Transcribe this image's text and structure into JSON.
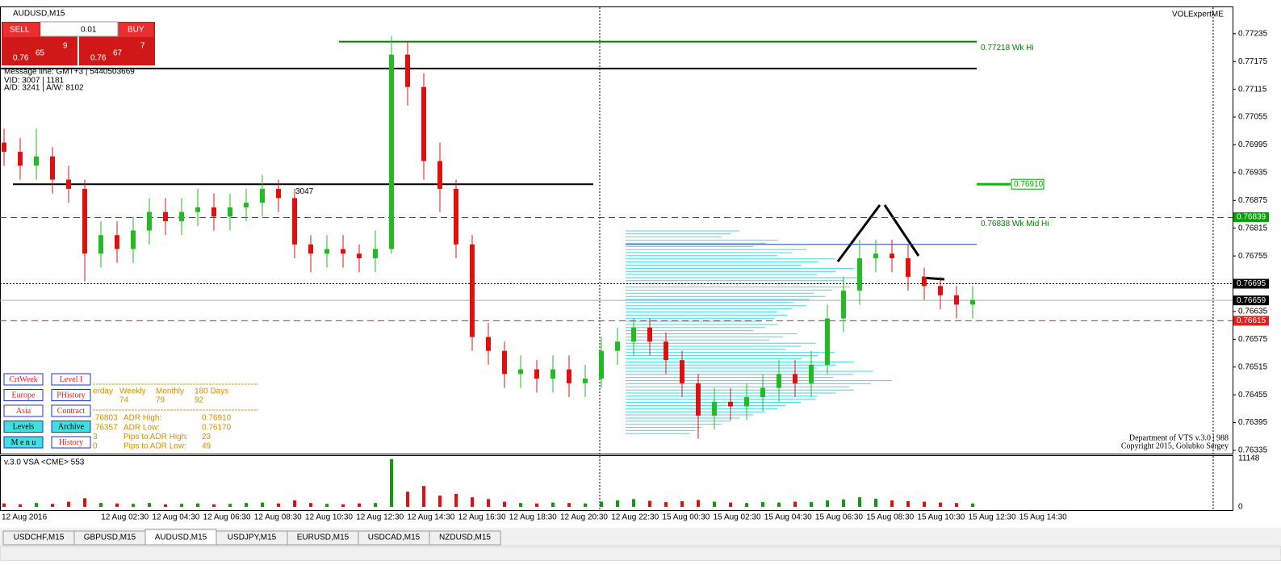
{
  "chart": {
    "symbol": "AUDUSD,M15",
    "quote": {
      "sell": "SELL",
      "buy": "BUY",
      "lot": "0.01",
      "bid_pre": "0.76",
      "bid_big": "65",
      "bid_small": "9",
      "ask_pre": "0.76",
      "ask_big": "67",
      "ask_small": "7"
    },
    "info": [
      "Message line: GMT+3 | 5440503669",
      "VID: 3007 | 1181",
      "A/D: 3241 | A/W: 8102"
    ],
    "expert": "VOLExpertME",
    "ylim": [
      0.76328,
      0.77294
    ],
    "yticks": [
      0.77235,
      0.77175,
      0.77115,
      0.77055,
      0.76995,
      0.76935,
      0.76875,
      0.76815,
      0.76755,
      0.76695,
      0.76635,
      0.76575,
      0.76515,
      0.76455,
      0.76395,
      0.76335
    ],
    "price_tags": [
      {
        "value": 0.76839,
        "label": "0.76839",
        "color": "#00a000"
      },
      {
        "value": 0.76695,
        "label": "0.76695",
        "color": "#000000"
      },
      {
        "value": 0.76659,
        "label": "0.76659",
        "color": "#000000"
      },
      {
        "value": 0.76615,
        "label": "0.76615",
        "color": "#e02020"
      }
    ],
    "levels": [
      {
        "value": 0.77218,
        "label": "0.77218  Wk Hi",
        "color": "#008000",
        "dash": "none"
      },
      {
        "value": 0.7716,
        "color": "#000000",
        "dash": "none"
      },
      {
        "value": 0.7691,
        "color": "#000000",
        "dash": "none"
      },
      {
        "value": 0.76838,
        "label": "0.76838  Wk Mid Hi",
        "color": "#008000",
        "dash": "8,5"
      },
      {
        "value": 0.7678,
        "color": "#2040c0",
        "dash": "none"
      },
      {
        "value": 0.76695,
        "color": "#000000",
        "dash": "2,2"
      },
      {
        "value": 0.76659,
        "color": "#aaaaaa",
        "dash": "none"
      },
      {
        "value": 0.76615,
        "color": "#e02020",
        "dash": "8,5"
      }
    ],
    "adr_box": {
      "value": 0.7691,
      "label": "0.76910"
    },
    "level_note": "3047",
    "candles": [
      [
        0.77,
        0.7703,
        0.7695,
        0.7698
      ],
      [
        0.7698,
        0.7701,
        0.7692,
        0.7695
      ],
      [
        0.7695,
        0.7703,
        0.7692,
        0.7697
      ],
      [
        0.7697,
        0.7699,
        0.7689,
        0.7692
      ],
      [
        0.7692,
        0.7695,
        0.7687,
        0.769
      ],
      [
        0.769,
        0.7692,
        0.767,
        0.7676
      ],
      [
        0.7676,
        0.7683,
        0.7673,
        0.768
      ],
      [
        0.768,
        0.7683,
        0.7674,
        0.7677
      ],
      [
        0.7677,
        0.7684,
        0.7674,
        0.7681
      ],
      [
        0.7681,
        0.7688,
        0.7678,
        0.7685
      ],
      [
        0.7685,
        0.7688,
        0.768,
        0.7683
      ],
      [
        0.7683,
        0.7688,
        0.768,
        0.7685
      ],
      [
        0.7685,
        0.769,
        0.7682,
        0.7686
      ],
      [
        0.7686,
        0.7689,
        0.7681,
        0.7684
      ],
      [
        0.7684,
        0.7689,
        0.7681,
        0.7686
      ],
      [
        0.7686,
        0.769,
        0.7683,
        0.7687
      ],
      [
        0.7687,
        0.7693,
        0.7684,
        0.769
      ],
      [
        0.769,
        0.7692,
        0.7685,
        0.7688
      ],
      [
        0.7688,
        0.769,
        0.7675,
        0.7678
      ],
      [
        0.7678,
        0.768,
        0.7672,
        0.7676
      ],
      [
        0.7676,
        0.768,
        0.7673,
        0.7677
      ],
      [
        0.7677,
        0.768,
        0.7673,
        0.7676
      ],
      [
        0.7676,
        0.7678,
        0.7672,
        0.7675
      ],
      [
        0.7675,
        0.7681,
        0.7672,
        0.7677
      ],
      [
        0.7677,
        0.7723,
        0.7676,
        0.7719
      ],
      [
        0.7719,
        0.7722,
        0.7708,
        0.7712
      ],
      [
        0.7712,
        0.7715,
        0.7692,
        0.7696
      ],
      [
        0.7696,
        0.77,
        0.7685,
        0.769
      ],
      [
        0.769,
        0.7692,
        0.7675,
        0.7678
      ],
      [
        0.7678,
        0.768,
        0.7655,
        0.7658
      ],
      [
        0.7658,
        0.7661,
        0.7652,
        0.7655
      ],
      [
        0.7655,
        0.7657,
        0.7647,
        0.765
      ],
      [
        0.765,
        0.7654,
        0.7647,
        0.7651
      ],
      [
        0.7651,
        0.7653,
        0.7646,
        0.7649
      ],
      [
        0.7649,
        0.7654,
        0.7646,
        0.7651
      ],
      [
        0.7651,
        0.7654,
        0.7645,
        0.7648
      ],
      [
        0.7648,
        0.7652,
        0.7645,
        0.7649
      ],
      [
        0.7649,
        0.7658,
        0.7647,
        0.7655
      ],
      [
        0.7655,
        0.766,
        0.7652,
        0.7657
      ],
      [
        0.7657,
        0.7662,
        0.7654,
        0.766
      ],
      [
        0.766,
        0.7662,
        0.7654,
        0.7657
      ],
      [
        0.7657,
        0.7659,
        0.765,
        0.7653
      ],
      [
        0.7653,
        0.7655,
        0.7645,
        0.7648
      ],
      [
        0.7648,
        0.765,
        0.7636,
        0.7641
      ],
      [
        0.7641,
        0.7647,
        0.7638,
        0.7644
      ],
      [
        0.7644,
        0.7647,
        0.764,
        0.7643
      ],
      [
        0.7643,
        0.7648,
        0.764,
        0.7645
      ],
      [
        0.7645,
        0.765,
        0.7642,
        0.7647
      ],
      [
        0.7647,
        0.7653,
        0.7644,
        0.765
      ],
      [
        0.765,
        0.7653,
        0.7645,
        0.7648
      ],
      [
        0.7648,
        0.7655,
        0.7645,
        0.7652
      ],
      [
        0.7652,
        0.7665,
        0.765,
        0.7662
      ],
      [
        0.7662,
        0.7671,
        0.7659,
        0.7668
      ],
      [
        0.7668,
        0.7679,
        0.7665,
        0.7675
      ],
      [
        0.7675,
        0.7679,
        0.7672,
        0.7676
      ],
      [
        0.7676,
        0.7679,
        0.7672,
        0.7675
      ],
      [
        0.7675,
        0.7678,
        0.7668,
        0.7671
      ],
      [
        0.7671,
        0.7673,
        0.7666,
        0.7669
      ],
      [
        0.7669,
        0.7671,
        0.7664,
        0.7667
      ],
      [
        0.7667,
        0.7669,
        0.7662,
        0.7665
      ],
      [
        0.7665,
        0.7669,
        0.7662,
        0.7666
      ]
    ],
    "profile": [
      60,
      80,
      95,
      110,
      120,
      125,
      118,
      105,
      95,
      85,
      80,
      90,
      100,
      110,
      120,
      130,
      140,
      120,
      100,
      80,
      60,
      40
    ],
    "volume_title": "v.3.0 VSA <CME> 553",
    "vlim": [
      0,
      11148
    ],
    "vticks": [
      11148,
      0
    ],
    "volume": [
      800,
      600,
      900,
      700,
      1200,
      2000,
      900,
      800,
      700,
      900,
      600,
      700,
      800,
      600,
      700,
      900,
      1000,
      800,
      1500,
      900,
      700,
      600,
      800,
      900,
      11000,
      3500,
      4800,
      2600,
      3000,
      2200,
      1800,
      1200,
      900,
      800,
      1000,
      900,
      800,
      1200,
      1500,
      1800,
      1400,
      1100,
      1300,
      1600,
      1200,
      1000,
      900,
      1100,
      1000,
      1200,
      1100,
      1500,
      1700,
      2200,
      1900,
      1500,
      1300,
      1200,
      1000,
      900,
      800
    ],
    "times": [
      "12 Aug 2016",
      "12 Aug 02:30",
      "12 Aug 04:30",
      "12 Aug 06:30",
      "12 Aug 08:30",
      "12 Aug 10:30",
      "12 Aug 12:30",
      "12 Aug 14:30",
      "12 Aug 16:30",
      "12 Aug 18:30",
      "12 Aug 20:30",
      "12 Aug 22:30",
      "15 Aug 00:30",
      "15 Aug 02:30",
      "15 Aug 04:30",
      "15 Aug 06:30",
      "15 Aug 08:30",
      "15 Aug 10:30",
      "15 Aug 12:30",
      "15 Aug 14:30"
    ],
    "buttons": [
      {
        "label": "CrtWeek",
        "bg": "#ffffff",
        "fg": "#e02020"
      },
      {
        "label": "Level I",
        "bg": "#ffffff",
        "fg": "#e02020"
      },
      {
        "label": "Europe",
        "bg": "#ffffff",
        "fg": "#e02020"
      },
      {
        "label": "PHistory",
        "bg": "#ffffff",
        "fg": "#e02020"
      },
      {
        "label": "Asia",
        "bg": "#ffffff",
        "fg": "#e02020"
      },
      {
        "label": "Contract",
        "bg": "#ffffff",
        "fg": "#e02020"
      },
      {
        "label": "Levels",
        "bg": "#40e0e0",
        "fg": "#000000"
      },
      {
        "label": "Archive",
        "bg": "#40e0e0",
        "fg": "#000000"
      },
      {
        "label": "M e n u",
        "bg": "#40e0e0",
        "fg": "#000000"
      },
      {
        "label": "History",
        "bg": "#ffffff",
        "fg": "#e02020"
      }
    ],
    "stats": {
      "header": [
        "erday",
        "Weekly",
        "Monthly",
        "180 Days"
      ],
      "row": [
        "74",
        "79",
        "92"
      ],
      "adr": [
        [
          ".76803",
          "ADR High:",
          "0.76910"
        ],
        [
          ".76357",
          "ADR Low:",
          "0.76170"
        ],
        [
          "3",
          "Pips to ADR High:",
          "23"
        ],
        [
          "0",
          "Pips to ADR Low:",
          "49"
        ]
      ]
    },
    "credits": [
      "Department of VTS  v.3.0 | 988",
      "Copyright 2015, Golubko Sergey"
    ],
    "tabs": [
      "USDCHF,M15",
      "GBPUSD,M15",
      "AUDUSD,M15",
      "USDJPY,M15",
      "EURUSD,M15",
      "USDCAD,M15",
      "NZDUSD,M15"
    ],
    "active_tab": 2
  }
}
